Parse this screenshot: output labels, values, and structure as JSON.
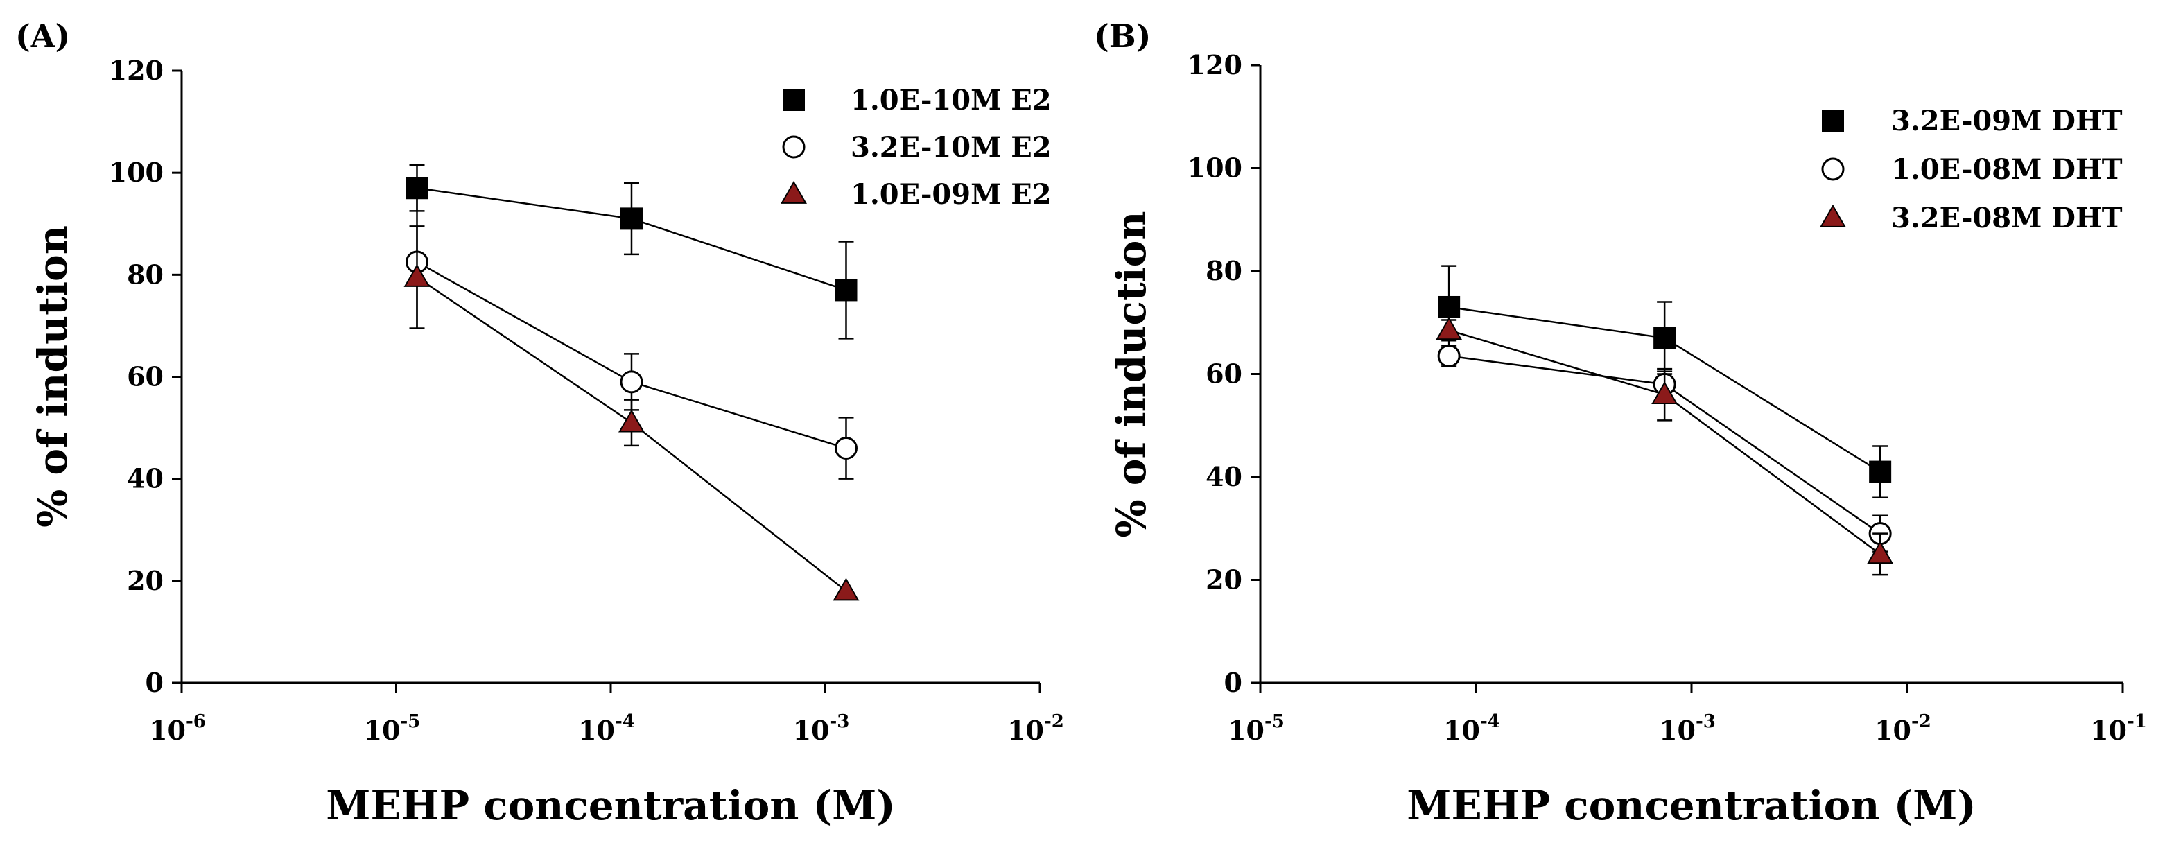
{
  "chart_data": [
    {
      "type": "scatter",
      "panel_label": "(A)",
      "xlabel": "MEHP concentration (M)",
      "ylabel": "% of indution",
      "x_scale": "log",
      "xlim": [
        1e-06,
        0.01
      ],
      "x_ticks": [
        {
          "value": 1e-06,
          "base": "10",
          "exp": "-6"
        },
        {
          "value": 1e-05,
          "base": "10",
          "exp": "-5"
        },
        {
          "value": 0.0001,
          "base": "10",
          "exp": "-4"
        },
        {
          "value": 0.001,
          "base": "10",
          "exp": "-3"
        },
        {
          "value": 0.01,
          "base": "10",
          "exp": "-2"
        }
      ],
      "ylim": [
        0,
        120
      ],
      "y_ticks": [
        0,
        20,
        40,
        60,
        80,
        100,
        120
      ],
      "grid": false,
      "legend_position": "top-right",
      "series": [
        {
          "name": "1.0E-10M E2",
          "marker": "square",
          "color": "#000000",
          "x": [
            1.25e-05,
            0.000125,
            0.00125
          ],
          "y": [
            97,
            91,
            77
          ],
          "err": [
            4.5,
            7,
            9.5
          ]
        },
        {
          "name": "3.2E-10M E2",
          "marker": "circle-open",
          "color": "#ffffff",
          "x": [
            1.25e-05,
            0.000125,
            0.00125
          ],
          "y": [
            82.5,
            59,
            46
          ],
          "err": [
            13,
            5.5,
            6
          ]
        },
        {
          "name": "1.0E-09M E2",
          "marker": "triangle",
          "color": "#8b1a1a",
          "x": [
            1.25e-05,
            0.000125,
            0.00125
          ],
          "y": [
            79.5,
            51,
            18
          ],
          "err": [
            10,
            4.5,
            0
          ]
        }
      ]
    },
    {
      "type": "scatter",
      "panel_label": "(B)",
      "xlabel": "MEHP concentration (M)",
      "ylabel": "% of induction",
      "x_scale": "log",
      "xlim": [
        1e-05,
        0.1
      ],
      "x_ticks": [
        {
          "value": 1e-05,
          "base": "10",
          "exp": "-5"
        },
        {
          "value": 0.0001,
          "base": "10",
          "exp": "-4"
        },
        {
          "value": 0.001,
          "base": "10",
          "exp": "-3"
        },
        {
          "value": 0.01,
          "base": "10",
          "exp": "-2"
        },
        {
          "value": 0.1,
          "base": "10",
          "exp": "-1"
        }
      ],
      "ylim": [
        0,
        120
      ],
      "y_ticks": [
        0,
        20,
        40,
        60,
        80,
        100,
        120
      ],
      "grid": false,
      "legend_position": "top-right",
      "series": [
        {
          "name": "3.2E-09M DHT",
          "marker": "square",
          "color": "#000000",
          "x": [
            7.5e-05,
            0.00075,
            0.0075
          ],
          "y": [
            73,
            67,
            41
          ],
          "err": [
            8,
            7,
            5
          ]
        },
        {
          "name": "1.0E-08M DHT",
          "marker": "circle-open",
          "color": "#ffffff",
          "x": [
            7.5e-05,
            0.00075,
            0.0075
          ],
          "y": [
            63.5,
            58,
            29
          ],
          "err": [
            2,
            2.5,
            3.5
          ]
        },
        {
          "name": "3.2E-08M DHT",
          "marker": "triangle",
          "color": "#8b1a1a",
          "x": [
            7.5e-05,
            0.00075,
            0.0075
          ],
          "y": [
            68.5,
            56,
            25
          ],
          "err": [
            2,
            5,
            4
          ]
        }
      ]
    }
  ]
}
